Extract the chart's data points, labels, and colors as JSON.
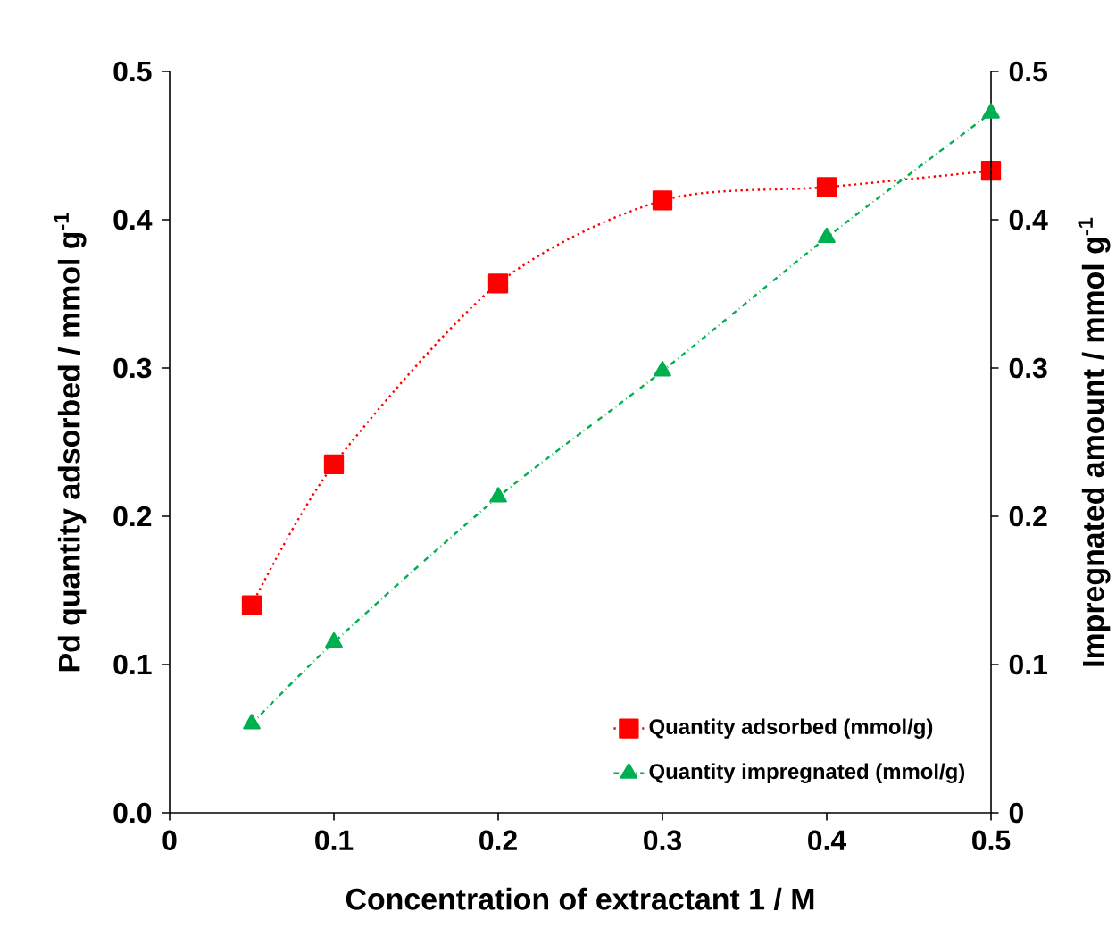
{
  "chart_data": {
    "type": "line",
    "xlabel": "Concentration of extractant 1 / M",
    "ylabel": "Pd quantity adsorbed / mmol g$^{-1}$",
    "y2label": "Impregnated amount / mmol g$^{-1}$",
    "x": [
      0.05,
      0.1,
      0.2,
      0.3,
      0.4,
      0.5
    ],
    "series": [
      {
        "name": "Quantity adsorbed (mmol/g)",
        "color": "#ff0000",
        "marker": "square",
        "line_style": "dotted",
        "values": [
          0.14,
          0.235,
          0.357,
          0.413,
          0.422,
          0.433
        ]
      },
      {
        "name": "Quantity impregnated (mmol/g)",
        "color": "#00b050",
        "marker": "triangle",
        "line_style": "dashed",
        "axis": "y2",
        "values": [
          0.06,
          0.115,
          0.213,
          0.298,
          0.388,
          0.472
        ]
      }
    ],
    "xlim": [
      0,
      0.5
    ],
    "xticks": [
      0,
      0.1,
      0.2,
      0.3,
      0.4,
      0.5
    ],
    "ylim": [
      0,
      0.5
    ],
    "yticks": [
      {
        "value": 0,
        "label": "0.0"
      },
      0.1,
      0.2,
      0.3,
      0.4,
      0.5
    ],
    "y2lim": [
      0,
      0.5
    ],
    "y2ticks": [
      0,
      0.1,
      0.2,
      0.3,
      0.4,
      0.5
    ],
    "legend": "bottom right"
  }
}
